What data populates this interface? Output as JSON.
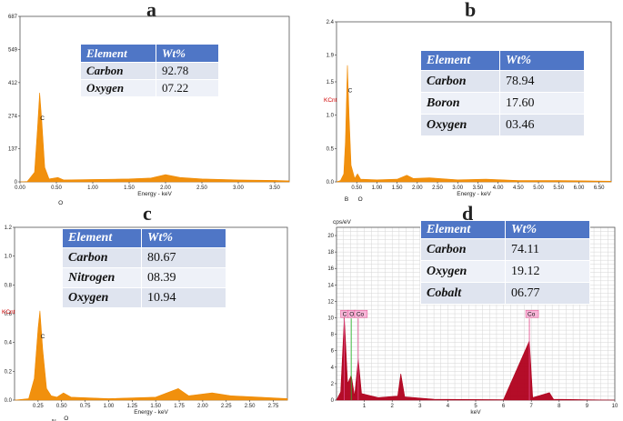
{
  "colors": {
    "spectrum_orange": "#f08a00",
    "spectrum_red": "#b0001c",
    "table_header": "#4f76c6",
    "table_row": "#dfe4ef"
  },
  "panels": {
    "a": {
      "label": "a",
      "table_header": {
        "element": "Element",
        "wt": "Wt%"
      },
      "table": [
        {
          "element": "Carbon",
          "wt": "92.78"
        },
        {
          "element": "Oxygen",
          "wt": "07.22"
        }
      ]
    },
    "b": {
      "label": "b",
      "table_header": {
        "element": "Element",
        "wt": "Wt%"
      },
      "table": [
        {
          "element": "Carbon",
          "wt": "78.94"
        },
        {
          "element": "Boron",
          "wt": "17.60"
        },
        {
          "element": "Oxygen",
          "wt": "03.46"
        }
      ]
    },
    "c": {
      "label": "c",
      "table_header": {
        "element": "Element",
        "wt": "Wt%"
      },
      "table": [
        {
          "element": "Carbon",
          "wt": "80.67"
        },
        {
          "element": "Nitrogen",
          "wt": "08.39"
        },
        {
          "element": "Oxygen",
          "wt": "10.94"
        }
      ]
    },
    "d": {
      "label": "d",
      "table_header": {
        "element": "Element",
        "wt": "Wt%"
      },
      "table": [
        {
          "element": "Carbon",
          "wt": "74.11"
        },
        {
          "element": "Oxygen",
          "wt": "19.12"
        },
        {
          "element": "Cobalt",
          "wt": "06.77"
        }
      ]
    }
  },
  "chart_data": [
    {
      "type": "area",
      "panel": "a",
      "xlabel": "Energy - keV",
      "ylabel": "",
      "xlim": [
        0,
        3.7
      ],
      "ylim": [
        0,
        687
      ],
      "xticks": [
        "0.00",
        "0.50",
        "1.00",
        "1.50",
        "2.00",
        "2.50",
        "3.00",
        "3.50"
      ],
      "yticks": [
        "0",
        "137",
        "274",
        "412",
        "549",
        "687"
      ],
      "peaks": [
        {
          "label": "C",
          "x": 0.27,
          "y": 370
        },
        {
          "label": "O",
          "x": 0.52,
          "y": 18
        }
      ],
      "series": [
        {
          "values": [
            [
              0.0,
              0
            ],
            [
              0.1,
              2
            ],
            [
              0.2,
              40
            ],
            [
              0.24,
              220
            ],
            [
              0.27,
              370
            ],
            [
              0.3,
              250
            ],
            [
              0.34,
              60
            ],
            [
              0.4,
              12
            ],
            [
              0.52,
              18
            ],
            [
              0.6,
              8
            ],
            [
              1.0,
              10
            ],
            [
              1.5,
              12
            ],
            [
              1.8,
              16
            ],
            [
              2.0,
              30
            ],
            [
              2.2,
              18
            ],
            [
              2.5,
              12
            ],
            [
              3.0,
              8
            ],
            [
              3.5,
              6
            ],
            [
              3.7,
              4
            ]
          ]
        }
      ]
    },
    {
      "type": "area",
      "panel": "b",
      "xlabel": "Energy - keV",
      "ylabel": "KCnt",
      "xlim": [
        0,
        6.8
      ],
      "ylim": [
        0,
        2.4
      ],
      "xticks": [
        "0.50",
        "1.00",
        "1.50",
        "2.00",
        "2.50",
        "3.00",
        "3.50",
        "4.00",
        "4.50",
        "5.00",
        "5.50",
        "6.00",
        "6.50"
      ],
      "yticks": [
        "0.0",
        "0.5",
        "1.0",
        "1.5",
        "1.9",
        "2.4"
      ],
      "peaks": [
        {
          "label": "B",
          "x": 0.18,
          "y": 0.12
        },
        {
          "label": "C",
          "x": 0.27,
          "y": 1.75
        },
        {
          "label": "O",
          "x": 0.52,
          "y": 0.12
        }
      ],
      "series": [
        {
          "values": [
            [
              0.0,
              0
            ],
            [
              0.1,
              0.02
            ],
            [
              0.18,
              0.12
            ],
            [
              0.22,
              0.6
            ],
            [
              0.27,
              1.75
            ],
            [
              0.31,
              1.0
            ],
            [
              0.36,
              0.25
            ],
            [
              0.45,
              0.05
            ],
            [
              0.52,
              0.12
            ],
            [
              0.6,
              0.04
            ],
            [
              1.0,
              0.03
            ],
            [
              1.5,
              0.04
            ],
            [
              1.74,
              0.1
            ],
            [
              1.9,
              0.05
            ],
            [
              2.3,
              0.06
            ],
            [
              3.0,
              0.03
            ],
            [
              3.7,
              0.04
            ],
            [
              4.5,
              0.02
            ],
            [
              5.5,
              0.02
            ],
            [
              6.8,
              0.01
            ]
          ]
        }
      ]
    },
    {
      "type": "area",
      "panel": "c",
      "xlabel": "Energy - keV",
      "ylabel": "KCnt",
      "xlim": [
        0,
        2.9
      ],
      "ylim": [
        0,
        1.2
      ],
      "xticks": [
        "0.25",
        "0.50",
        "0.75",
        "1.00",
        "1.25",
        "1.50",
        "1.75",
        "2.00",
        "2.25",
        "2.50",
        "2.75"
      ],
      "yticks": [
        "0.0",
        "0.2",
        "0.4",
        "0.6",
        "0.8",
        "1.0",
        "1.2"
      ],
      "peaks": [
        {
          "label": "C",
          "x": 0.27,
          "y": 0.62
        },
        {
          "label": "N",
          "x": 0.39,
          "y": 0.03
        },
        {
          "label": "O",
          "x": 0.52,
          "y": 0.05
        }
      ],
      "series": [
        {
          "values": [
            [
              0.0,
              0
            ],
            [
              0.15,
              0.01
            ],
            [
              0.21,
              0.15
            ],
            [
              0.25,
              0.5
            ],
            [
              0.27,
              0.62
            ],
            [
              0.3,
              0.35
            ],
            [
              0.34,
              0.08
            ],
            [
              0.39,
              0.03
            ],
            [
              0.45,
              0.02
            ],
            [
              0.52,
              0.05
            ],
            [
              0.6,
              0.02
            ],
            [
              1.0,
              0.01
            ],
            [
              1.5,
              0.02
            ],
            [
              1.74,
              0.08
            ],
            [
              1.85,
              0.03
            ],
            [
              2.1,
              0.05
            ],
            [
              2.3,
              0.03
            ],
            [
              2.6,
              0.02
            ],
            [
              2.9,
              0.01
            ]
          ]
        }
      ]
    },
    {
      "type": "area",
      "panel": "d",
      "xlabel": "keV",
      "ylabel": "cps/eV",
      "xlim": [
        0,
        10
      ],
      "ylim": [
        0,
        21
      ],
      "xticks": [
        "1",
        "2",
        "3",
        "4",
        "5",
        "6",
        "7",
        "8",
        "9",
        "10"
      ],
      "yticks": [
        "0",
        "2",
        "4",
        "6",
        "8",
        "10",
        "12",
        "14",
        "16",
        "18",
        "20"
      ],
      "peaks": [
        {
          "label": "C",
          "x": 0.28,
          "y": 10
        },
        {
          "label": "O",
          "x": 0.53,
          "y": 3
        },
        {
          "label": "Co",
          "x": 0.78,
          "y": 5
        },
        {
          "label": "Co",
          "x": 6.93,
          "y": 7
        }
      ],
      "series": [
        {
          "values": [
            [
              0.0,
              0
            ],
            [
              0.15,
              1
            ],
            [
              0.28,
              10
            ],
            [
              0.4,
              2
            ],
            [
              0.53,
              3
            ],
            [
              0.65,
              0.5
            ],
            [
              0.78,
              5
            ],
            [
              0.9,
              0.8
            ],
            [
              1.5,
              0.3
            ],
            [
              2.2,
              0.5
            ],
            [
              2.31,
              3.2
            ],
            [
              2.45,
              0.4
            ],
            [
              3.5,
              0.1
            ],
            [
              6.0,
              0.05
            ],
            [
              6.93,
              7.2
            ],
            [
              7.05,
              0.3
            ],
            [
              7.65,
              0.9
            ],
            [
              7.8,
              0.1
            ],
            [
              10,
              0
            ]
          ]
        }
      ]
    }
  ]
}
